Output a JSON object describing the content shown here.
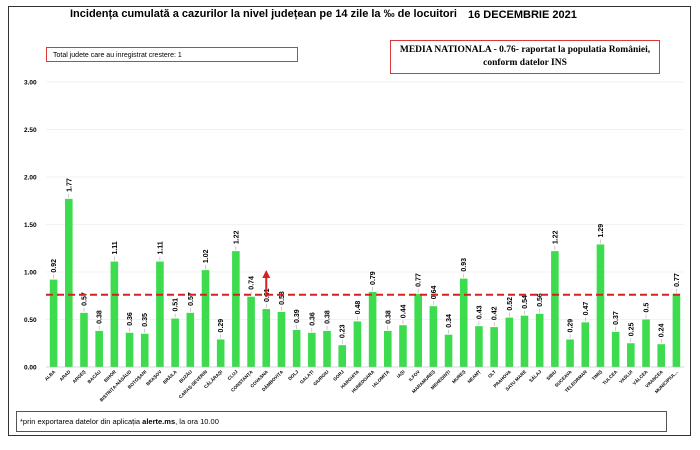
{
  "title": "Incidența cumulată a cazurilor la nivel județean pe 14 zile la ‰ de locuitori",
  "date": "16 DECEMBRIE 2021",
  "total_box": "Total judete care au inregistrat crestere: 1",
  "media_line1": "MEDIA NATIONALA - 0.76-  raportat la populatia României,",
  "media_line2": "conform datelor INS",
  "footnote_prefix": "*prin exportarea datelor din aplicația ",
  "footnote_bold": "alerte.ms",
  "footnote_suffix": ", la ora 10.00",
  "colors": {
    "bar": "#3ddc4f",
    "mean_line": "#d62020",
    "arrow": "#d62020",
    "grid": "#e6e6e6"
  },
  "chart_data": {
    "type": "bar",
    "title": "Incidența cumulată a cazurilor la nivel județean pe 14 zile la ‰ de locuitori",
    "ylim": [
      0,
      3
    ],
    "yticks": [
      "0.00",
      "0.50",
      "1.00",
      "1.50",
      "2.00",
      "2.50",
      "3.00"
    ],
    "mean": 0.76,
    "increase_marker_category": "COVASNA",
    "categories": [
      "ALBA",
      "ARAD",
      "ARGEȘ",
      "BACĂU",
      "BIHOR",
      "BISTRIȚA NĂSĂUD",
      "BOTOȘANI",
      "BRAȘOV",
      "BRĂILA",
      "BUZĂU",
      "CARAS-SEVERIN",
      "CĂLĂRAȘI",
      "CLUJ",
      "CONSTANȚA",
      "COVASNA",
      "DÂMBOVIȚA",
      "DOLJ",
      "GALAȚI",
      "GIURGIU",
      "GORJ",
      "HARGHITA",
      "HUNEDOARA",
      "IALOMIȚA",
      "IAȘI",
      "ILFOV",
      "MARAMUREȘ",
      "MEHEDINȚI",
      "MUREȘ",
      "NEAMȚ",
      "OLT",
      "PRAHOVA",
      "SATU MARE",
      "SĂLAJ",
      "SIBIU",
      "SUCEAVA",
      "TELEORMAN",
      "TIMIȘ",
      "TULCEA",
      "VASLUI",
      "VÂLCEA",
      "VRANCEA",
      "MUNICIPIUL BUCUREȘTI"
    ],
    "tick_labels": [
      "ALBA",
      "ARAD",
      "ARGEȘ",
      "BACĂU",
      "BIHOR",
      "BISTRIȚA-NĂSĂUD",
      "BOTOȘANI",
      "BRAȘOV",
      "BRĂILA",
      "BUZĂU",
      "CARAȘ-SEVERIN",
      "CĂLĂRAȘI",
      "CLUJ",
      "CONSTANȚA",
      "COVASNA",
      "DÂMBOVIȚA",
      "DOLJ",
      "GALAȚI",
      "GIURGIU",
      "GORJ",
      "HARGHITA",
      "HUNEDOARA",
      "IALOMIȚA",
      "IAȘI",
      "ILFOV",
      "MARAMUREȘ",
      "MEHEDINȚI",
      "MUREȘ",
      "NEAMȚ",
      "OLT",
      "PRAHOVA",
      "SATU MARE",
      "SĂLAJ",
      "SIBIU",
      "SUCEAVA",
      "TELEORMAN",
      "TIMIȘ",
      "TULCEA",
      "VASLUI",
      "VÂLCEA",
      "VRANCEA",
      "MUNICIPIUL..."
    ],
    "values": [
      0.92,
      1.77,
      0.57,
      0.38,
      1.11,
      0.36,
      0.35,
      1.11,
      0.51,
      0.57,
      1.02,
      0.29,
      1.22,
      0.74,
      0.61,
      0.58,
      0.39,
      0.36,
      0.38,
      0.23,
      0.48,
      0.79,
      0.38,
      0.44,
      0.77,
      0.64,
      0.34,
      0.93,
      0.43,
      0.42,
      0.52,
      0.54,
      0.56,
      1.22,
      0.29,
      0.47,
      1.29,
      0.37,
      0.25,
      0.5,
      0.24,
      0.77
    ],
    "value_labels": [
      "0.92",
      "1.77",
      "0.57",
      "0.38",
      "1.11",
      "0.36",
      "0.35",
      "1.11",
      "0.51",
      "0.57",
      "1.02",
      "0.29",
      "1.22",
      "0.74",
      "0.61",
      "0.58",
      "0.39",
      "0.36",
      "0.38",
      "0.23",
      "0.48",
      "0.79",
      "0.38",
      "0.44",
      "0.77",
      "0.64",
      "0.34",
      "0.93",
      "0.43",
      "0.42",
      "0.52",
      "0.54",
      "0.56",
      "1.22",
      "0.29",
      "0.47",
      "1.29",
      "0.37",
      "0.25",
      "0.5",
      "0.24",
      "0.77"
    ]
  }
}
